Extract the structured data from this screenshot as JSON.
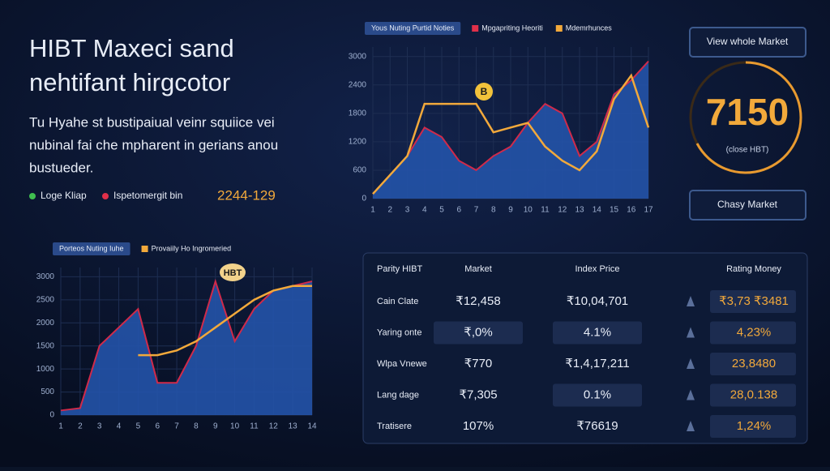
{
  "header": {
    "title_lines": [
      "HIBT Maxeci sand",
      "nehtifant hirgcotor"
    ],
    "description": [
      "Tu Hyahe st bustipaiual veinr squiice vei",
      "nubinal fai che mpharent in gerians anou",
      "bustueder."
    ],
    "legend": [
      {
        "label": "Loge Kliap",
        "color": "#3fbf4f"
      },
      {
        "label": "Ispetomergit bin",
        "color": "#e0304a"
      }
    ],
    "highlight": "2244-129"
  },
  "top_chart": {
    "legend": [
      {
        "label": "Yous Nuting Purtid Noties",
        "color": "#2a4a8a"
      },
      {
        "label": "Mpgapriting Heoriti",
        "color": "#e0304a"
      },
      {
        "label": "Mdemrhunces",
        "color": "#f2a93b"
      }
    ],
    "marker": "B",
    "x": [
      1,
      2,
      3,
      4,
      5,
      6,
      7,
      8,
      9,
      10,
      11,
      12,
      13,
      14,
      15,
      16,
      17
    ],
    "area": [
      100,
      500,
      900,
      1500,
      1300,
      800,
      600,
      900,
      1100,
      1600,
      2000,
      1800,
      900,
      1200,
      2200,
      2500,
      2900
    ],
    "line": [
      100,
      500,
      900,
      2000,
      2000,
      2000,
      2000,
      1400,
      1500,
      1600,
      1100,
      800,
      600,
      1000,
      2100,
      2600,
      1500
    ],
    "area_color": "#2453a8",
    "edge_color": "#d02a4a",
    "line_color": "#f2a93b",
    "xlim": [
      1,
      17
    ],
    "ylim": [
      0,
      3200
    ],
    "yticks": [
      0,
      600,
      1200,
      1800,
      2400,
      3000
    ]
  },
  "gauge": {
    "value": "7150",
    "caption": "(close HBT)"
  },
  "buttons": [
    "View whole Market",
    "Chasy Market"
  ],
  "bottom_chart": {
    "legend": [
      {
        "label": "Porteos Nuting Iuhe",
        "color": "#2a4a8a"
      },
      {
        "label": "Provaiily Ho Ingromeried",
        "color": "#f2a93b"
      }
    ],
    "marker": "HBT",
    "x": [
      1,
      2,
      3,
      4,
      5,
      6,
      7,
      8,
      9,
      10,
      11,
      12,
      13,
      14
    ],
    "area": [
      100,
      150,
      1500,
      1900,
      2300,
      700,
      700,
      1500,
      2900,
      1600,
      2300,
      2700,
      2800,
      2900
    ],
    "line": [
      null,
      null,
      null,
      null,
      1300,
      1300,
      1400,
      1600,
      1900,
      2200,
      2500,
      2700,
      2800,
      2800
    ],
    "area_color": "#2453a8",
    "edge_color": "#d02a4a",
    "line_color": "#f2a93b",
    "xlim": [
      1,
      14
    ],
    "ylim": [
      0,
      3200
    ],
    "yticks": [
      0,
      500,
      1000,
      1500,
      2000,
      2500,
      3000
    ]
  },
  "table": {
    "header": [
      "Parity HIBT",
      "Market",
      "Index Price",
      "Rating Money"
    ],
    "rows": [
      [
        "Cain Clate",
        "₹12,458",
        "₹10,04,701",
        "₹3,73 ₹3481"
      ],
      [
        "Yaring onte",
        "₹,0%",
        "4.1%",
        "4,23%"
      ],
      [
        "Wlpa Vnewe",
        "₹770",
        "₹1,4,17,211",
        "23,8480"
      ],
      [
        "Lang dage",
        "₹7,305",
        "0.1%",
        "28,0.138"
      ],
      [
        "Tratisere",
        "107%",
        "₹76619",
        "1,24%"
      ]
    ]
  }
}
